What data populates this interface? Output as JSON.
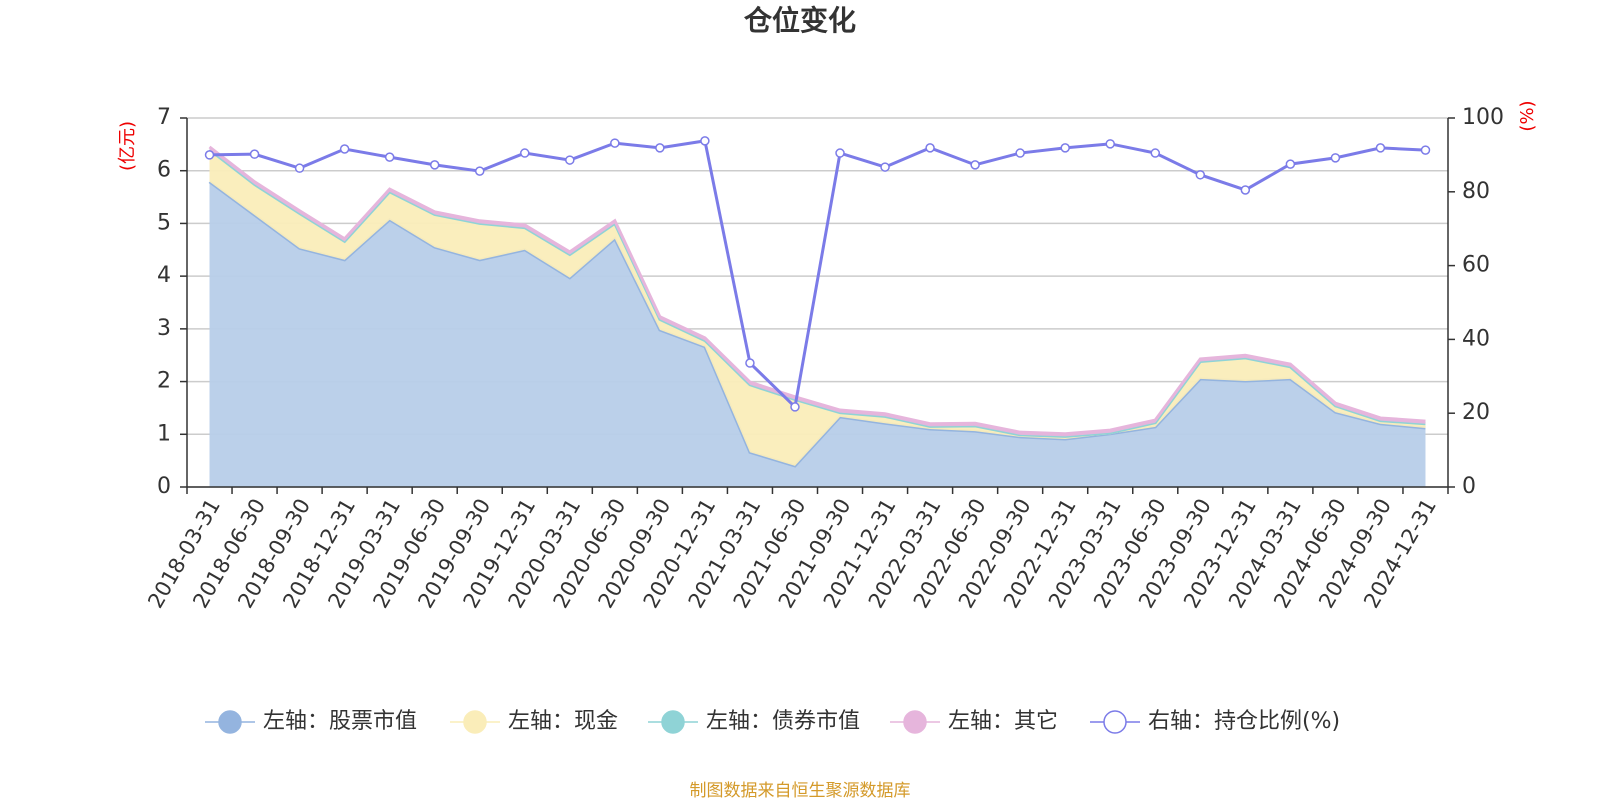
{
  "chart_data": {
    "type": "stacked-area-line",
    "title": "仓位变化",
    "y_label": "(亿元)",
    "y2_label": "(%)",
    "source": "制图数据来自恒生聚源数据库",
    "categories": [
      "2018-03-31",
      "2018-06-30",
      "2018-09-30",
      "2018-12-31",
      "2019-03-31",
      "2019-06-30",
      "2019-09-30",
      "2019-12-31",
      "2020-03-31",
      "2020-06-30",
      "2020-09-30",
      "2020-12-31",
      "2021-03-31",
      "2021-06-30",
      "2021-09-30",
      "2021-12-31",
      "2022-03-31",
      "2022-06-30",
      "2022-09-30",
      "2022-12-31",
      "2023-03-31",
      "2023-06-30",
      "2023-09-30",
      "2023-12-31",
      "2024-03-31",
      "2024-06-30",
      "2024-09-30",
      "2024-12-31"
    ],
    "series": [
      {
        "name": "左轴：股票市值",
        "color": "#94b4df",
        "fill": "#b7cde9",
        "values": [
          5.79,
          5.16,
          4.53,
          4.31,
          5.07,
          4.55,
          4.31,
          4.5,
          3.97,
          4.71,
          2.98,
          2.66,
          0.66,
          0.4,
          1.33,
          1.21,
          1.1,
          1.06,
          0.95,
          0.91,
          1.01,
          1.14,
          2.05,
          2.01,
          2.05,
          1.42,
          1.2,
          1.12
        ]
      },
      {
        "name": "左轴：现金",
        "color": "#faedb9",
        "fill": "#faedb9",
        "values": [
          0.61,
          0.58,
          0.66,
          0.35,
          0.53,
          0.62,
          0.69,
          0.42,
          0.44,
          0.29,
          0.2,
          0.12,
          1.28,
          1.26,
          0.08,
          0.13,
          0.05,
          0.1,
          0.04,
          0.05,
          0.02,
          0.08,
          0.33,
          0.44,
          0.23,
          0.12,
          0.06,
          0.08
        ]
      },
      {
        "name": "左轴：债券市值",
        "color": "#8fd3d6",
        "fill": "#8fd3d6",
        "values": [
          0,
          0,
          0,
          0,
          0,
          0,
          0,
          0,
          0,
          0,
          0,
          0,
          0,
          0,
          0,
          0,
          0,
          0,
          0,
          0,
          0,
          0,
          0,
          0,
          0,
          0,
          0,
          0
        ]
      },
      {
        "name": "左轴：其它",
        "color": "#e6b5dc",
        "fill": "#e6b5dc",
        "values": [
          0.05,
          0.05,
          0.05,
          0.05,
          0.05,
          0.05,
          0.05,
          0.05,
          0.05,
          0.05,
          0.05,
          0.05,
          0.05,
          0.05,
          0.05,
          0.05,
          0.05,
          0.05,
          0.05,
          0.05,
          0.05,
          0.05,
          0.05,
          0.05,
          0.05,
          0.05,
          0.05,
          0.05
        ]
      },
      {
        "name": "右轴：持仓比例(%)",
        "color": "#7b7be8",
        "axis": "y2",
        "values": [
          90.0,
          90.2,
          86.4,
          91.6,
          89.4,
          87.3,
          85.6,
          90.5,
          88.6,
          93.2,
          91.9,
          93.8,
          33.6,
          21.7,
          90.5,
          86.7,
          91.9,
          87.3,
          90.5,
          91.9,
          93.0,
          90.5,
          84.6,
          80.5,
          87.5,
          89.2,
          91.9,
          91.3
        ]
      }
    ],
    "ylim": [
      0,
      7
    ],
    "yticks": [
      0,
      1,
      2,
      3,
      4,
      5,
      6,
      7
    ],
    "y2lim": [
      0,
      100
    ],
    "y2ticks": [
      0,
      20,
      40,
      60,
      80,
      100
    ],
    "grid": true
  }
}
